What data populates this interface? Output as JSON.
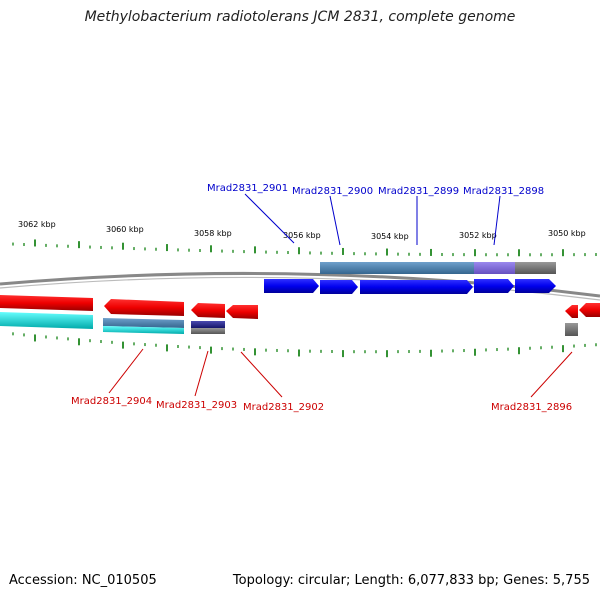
{
  "title": "Methylobacterium radiotolerans JCM 2831, complete genome",
  "footer": {
    "accession": "Accession: NC_010505",
    "topology": "Topology: circular; Length: 6,077,833 bp; Genes: 5,755"
  },
  "colors": {
    "forward_gene": "#0000ee",
    "reverse_gene": "#ee0000",
    "cds_blue": "#4a7fb0",
    "cds_cyan": "#00cccc",
    "tick": "#007700",
    "backbone": "#777777"
  },
  "scale_labels": [
    "3062 kbp",
    "3060 kbp",
    "3058 kbp",
    "3056 kbp",
    "3054 kbp",
    "3052 kbp",
    "3050 kbp"
  ],
  "forward_labels": [
    "Mrad2831_2901",
    "Mrad2831_2900",
    "Mrad2831_2899",
    "Mrad2831_2898"
  ],
  "reverse_labels": [
    "Mrad2831_2904",
    "Mrad2831_2903",
    "Mrad2831_2902",
    "Mrad2831_2896"
  ]
}
